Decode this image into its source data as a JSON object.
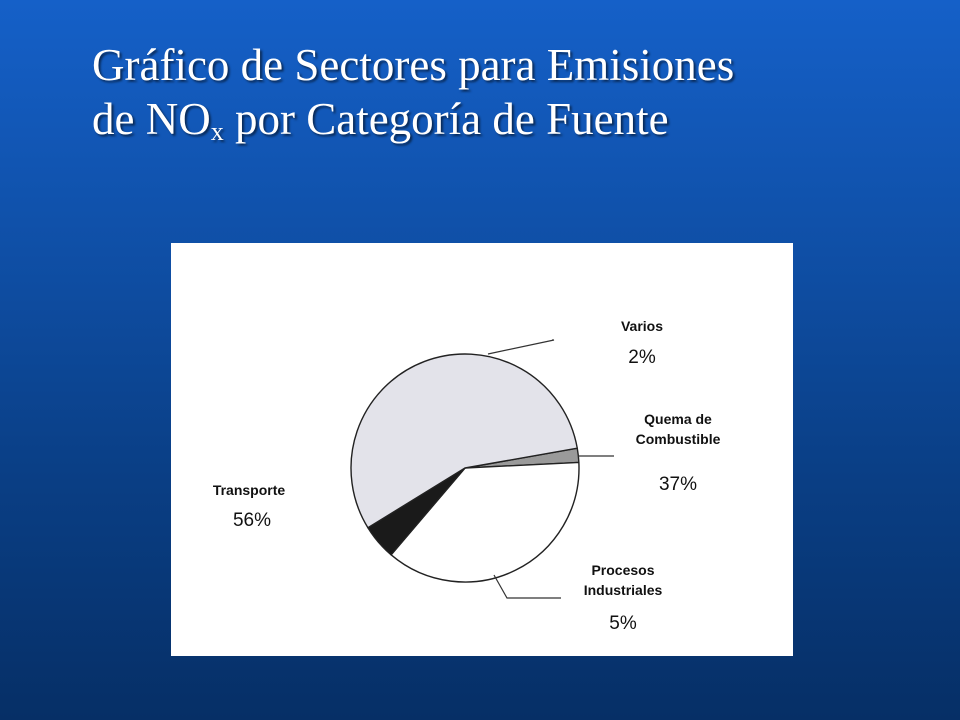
{
  "slide": {
    "title_line1": "Gráfico de Sectores para Emisiones",
    "title_line2_before": "de NO",
    "title_line2_sub": "x",
    "title_line2_after": " por Categoría de Fuente"
  },
  "colors": {
    "background_top": "#1560c8",
    "background_bottom": "#062f66",
    "title_text": "#ffffff",
    "slice_varios": "#9a9a9a",
    "slice_combustible": "#ffffff",
    "slice_industriales": "#1a1a1a",
    "slice_transporte": "#e3e3ea"
  },
  "chart_data": {
    "type": "pie",
    "title": "",
    "slices": [
      {
        "label_lines": [
          "Varios"
        ],
        "value": 2,
        "value_label": "2%"
      },
      {
        "label_lines": [
          "Quema de",
          "Combustible"
        ],
        "value": 37,
        "value_label": "37%"
      },
      {
        "label_lines": [
          "Procesos",
          "Industriales"
        ],
        "value": 5,
        "value_label": "5%"
      },
      {
        "label_lines": [
          "Transporte"
        ],
        "value": 56,
        "value_label": "56%"
      }
    ]
  }
}
